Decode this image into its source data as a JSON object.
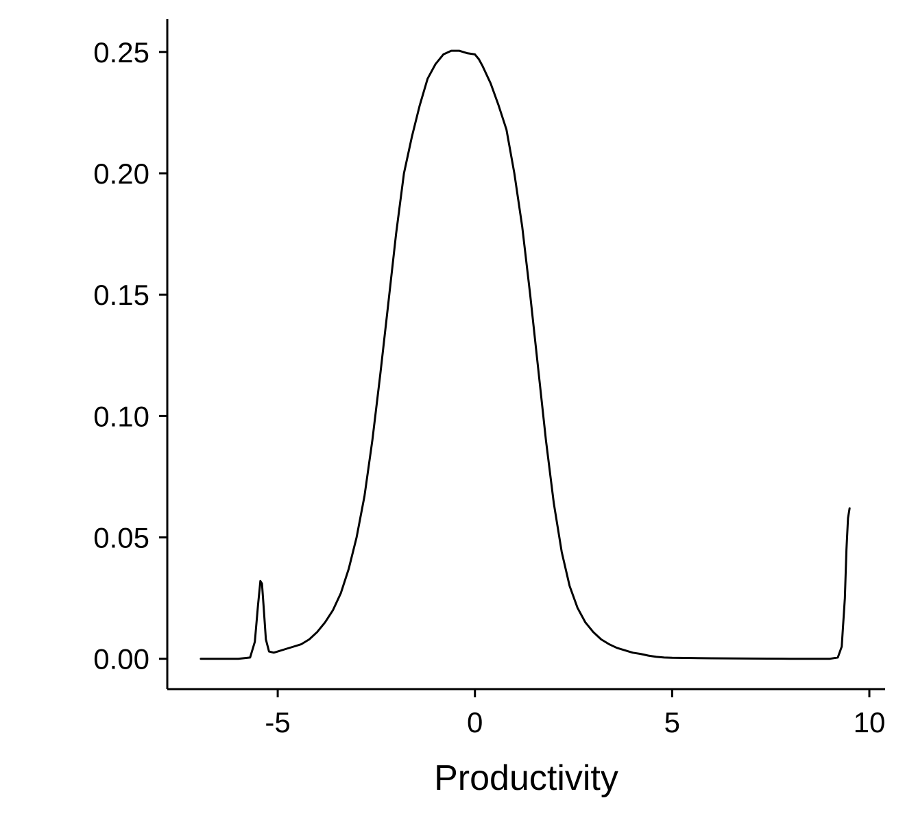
{
  "chart_data": {
    "type": "line",
    "title": "",
    "xlabel": "Productivity",
    "ylabel": "",
    "xlim": [
      -7.8,
      10.4
    ],
    "ylim": [
      -0.0125,
      0.2635
    ],
    "x_ticks": [
      -5,
      0,
      5,
      10
    ],
    "x_tick_labels": [
      "-5",
      "0",
      "5",
      "10"
    ],
    "y_ticks": [
      0.0,
      0.05,
      0.1,
      0.15,
      0.2,
      0.25
    ],
    "y_tick_labels": [
      "0.00",
      "0.05",
      "0.10",
      "0.15",
      "0.20",
      "0.25"
    ],
    "grid": false,
    "line_color": "#000000",
    "series": [
      {
        "x": [
          -6.95,
          -6.5,
          -6.0,
          -5.7,
          -5.58,
          -5.5,
          -5.44,
          -5.4,
          -5.36,
          -5.3,
          -5.22,
          -5.1,
          -5.0,
          -4.8,
          -4.6,
          -4.4,
          -4.2,
          -4.0,
          -3.8,
          -3.6,
          -3.4,
          -3.2,
          -3.0,
          -2.8,
          -2.6,
          -2.4,
          -2.2,
          -2.0,
          -1.8,
          -1.6,
          -1.4,
          -1.2,
          -1.0,
          -0.8,
          -0.6,
          -0.4,
          -0.2,
          0.0,
          0.1,
          0.2,
          0.4,
          0.6,
          0.8,
          1.0,
          1.2,
          1.4,
          1.6,
          1.8,
          2.0,
          2.2,
          2.4,
          2.6,
          2.8,
          3.0,
          3.2,
          3.4,
          3.6,
          3.8,
          4.0,
          4.2,
          4.4,
          4.6,
          4.8,
          5.0,
          5.5,
          6.0,
          7.0,
          8.0,
          9.0,
          9.2,
          9.3,
          9.38,
          9.42,
          9.46,
          9.5
        ],
        "y": [
          0.0,
          0.0,
          0.0,
          0.0005,
          0.007,
          0.022,
          0.032,
          0.031,
          0.022,
          0.008,
          0.003,
          0.0025,
          0.003,
          0.004,
          0.005,
          0.006,
          0.008,
          0.011,
          0.015,
          0.02,
          0.027,
          0.037,
          0.05,
          0.067,
          0.09,
          0.117,
          0.146,
          0.175,
          0.2,
          0.215,
          0.228,
          0.239,
          0.245,
          0.249,
          0.2505,
          0.2505,
          0.2495,
          0.249,
          0.247,
          0.244,
          0.237,
          0.228,
          0.218,
          0.2,
          0.178,
          0.15,
          0.12,
          0.09,
          0.064,
          0.044,
          0.03,
          0.021,
          0.015,
          0.011,
          0.008,
          0.006,
          0.0045,
          0.0035,
          0.0025,
          0.002,
          0.0013,
          0.0008,
          0.0005,
          0.0004,
          0.0003,
          0.0002,
          0.0001,
          0.0,
          0.0,
          0.0005,
          0.005,
          0.025,
          0.045,
          0.058,
          0.062
        ]
      }
    ]
  }
}
